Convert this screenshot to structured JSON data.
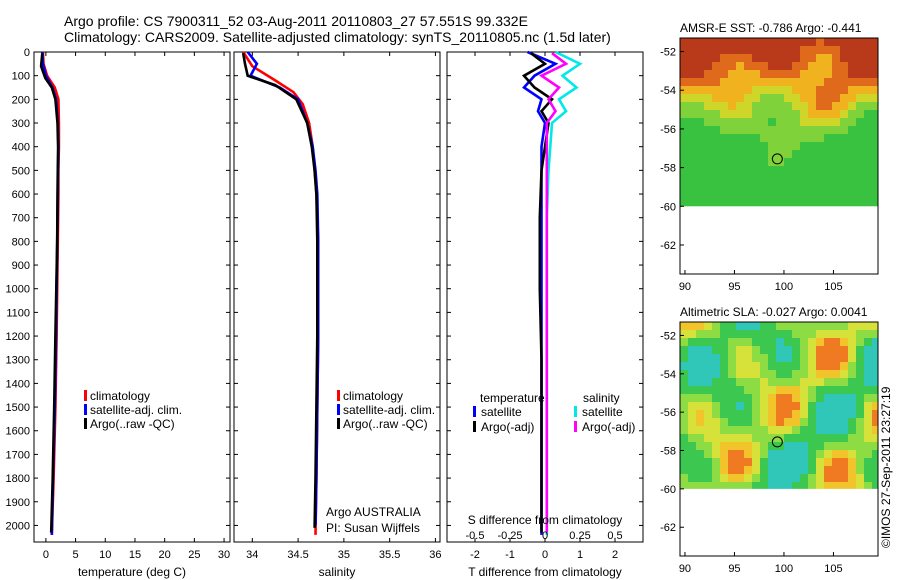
{
  "title": {
    "line1": "Argo profile: CS 7900311_52 03-Aug-2011 20110803_27 57.551S 99.332E",
    "line2": "Climatology: CARS2009. Satellite-adjusted climatology: synTS_20110805.nc (1.5d later)"
  },
  "credit": {
    "line1": "Argo AUSTRALIA",
    "line2": "PI: Susan Wijffels"
  },
  "timestamp": "©IMOS 27-Sep-2011 23:27:19",
  "colors": {
    "climatology": "#ff0000",
    "satellite": "#0000ff",
    "argo": "#000000",
    "satellite_salinity": "#00e8e8",
    "argo_salinity": "#ff00ff"
  },
  "chart_data": [
    {
      "id": "temperature",
      "type": "line",
      "xlabel": "temperature (deg C)",
      "ylabel": "",
      "xlim": [
        -2,
        31
      ],
      "ylim": [
        2070,
        0
      ],
      "xticks": [
        0,
        5,
        10,
        15,
        20,
        25,
        30
      ],
      "yticks": [
        0,
        100,
        200,
        300,
        400,
        500,
        600,
        700,
        800,
        900,
        1000,
        1100,
        1200,
        1300,
        1400,
        1500,
        1600,
        1700,
        1800,
        1900,
        2000
      ],
      "legend": [
        "climatology",
        "satellite-adj. clim.",
        "Argo(..raw -QC)"
      ],
      "series": [
        {
          "name": "climatology",
          "color": "#ff0000",
          "x": [
            -0.5,
            -0.4,
            0.2,
            1.5,
            2.1,
            2.2,
            2.2,
            2.1,
            2.1,
            2.0,
            1.9,
            1.8,
            1.6,
            1.3,
            1.0
          ],
          "y": [
            0,
            50,
            100,
            150,
            200,
            300,
            400,
            500,
            600,
            800,
            1000,
            1200,
            1500,
            1800,
            2040
          ]
        },
        {
          "name": "satellite-adj. clim.",
          "color": "#0000ff",
          "x": [
            -0.6,
            -0.5,
            0.0,
            1.1,
            1.7,
            2.0,
            2.1,
            2.05,
            2.0,
            1.9,
            1.8,
            1.7,
            1.5,
            1.2,
            1.0
          ],
          "y": [
            0,
            50,
            100,
            150,
            200,
            300,
            400,
            500,
            600,
            800,
            1000,
            1200,
            1500,
            1800,
            2040
          ]
        },
        {
          "name": "Argo(..raw -QC)",
          "color": "#000000",
          "x": [
            -0.6,
            -0.8,
            -0.1,
            1.0,
            1.6,
            1.95,
            2.05,
            2.0,
            1.95,
            1.9,
            1.75,
            1.6,
            1.4,
            1.15,
            0.9
          ],
          "y": [
            5,
            60,
            110,
            150,
            200,
            300,
            400,
            500,
            600,
            800,
            1000,
            1200,
            1500,
            1800,
            2030
          ]
        }
      ]
    },
    {
      "id": "salinity",
      "type": "line",
      "xlabel": "salinity",
      "ylabel": "",
      "xlim": [
        33.8,
        36.05
      ],
      "ylim": [
        2070,
        0
      ],
      "xticks": [
        34,
        34.5,
        35,
        35.5,
        36
      ],
      "legend": [
        "climatology",
        "satellite-adj. clim.",
        "Argo(..raw -QC)"
      ],
      "series": [
        {
          "name": "climatology",
          "color": "#ff0000",
          "x": [
            33.9,
            34.0,
            34.25,
            34.45,
            34.55,
            34.62,
            34.66,
            34.68,
            34.7,
            34.72,
            34.72,
            34.72,
            34.71,
            34.7,
            34.69
          ],
          "y": [
            0,
            60,
            120,
            170,
            220,
            300,
            400,
            500,
            600,
            800,
            1000,
            1200,
            1500,
            1800,
            2040
          ]
        },
        {
          "name": "satellite-adj. clim.",
          "color": "#0000ff",
          "x": [
            33.95,
            34.05,
            33.98,
            34.3,
            34.5,
            34.6,
            34.66,
            34.69,
            34.71,
            34.72,
            34.72,
            34.72,
            34.71,
            34.7,
            34.69
          ],
          "y": [
            0,
            50,
            100,
            150,
            200,
            300,
            400,
            500,
            600,
            800,
            1000,
            1200,
            1500,
            1800,
            2000
          ]
        },
        {
          "name": "Argo(..raw -QC)",
          "color": "#000000",
          "x": [
            33.9,
            33.92,
            33.95,
            34.25,
            34.48,
            34.6,
            34.65,
            34.68,
            34.7,
            34.71,
            34.71,
            34.71,
            34.7,
            34.69,
            34.68
          ],
          "y": [
            5,
            50,
            100,
            140,
            200,
            300,
            400,
            500,
            600,
            800,
            1000,
            1200,
            1500,
            1800,
            2010
          ]
        }
      ]
    },
    {
      "id": "difference",
      "type": "line",
      "xlabel": "T difference from climatology",
      "xlabel_top": "S difference from climatology",
      "xlim": [
        -2.8,
        2.8
      ],
      "ylim": [
        2070,
        0
      ],
      "xticks": [
        -2,
        -1,
        0,
        1,
        2
      ],
      "xticks_top": [
        -0.5,
        -0.25,
        0,
        0.25,
        0.5
      ],
      "legend_left_title": "temperature",
      "legend_right_title": "salinity",
      "legend_left": [
        "satellite",
        "Argo(-adj)"
      ],
      "legend_right": [
        "satellite",
        "Argo(-adj)"
      ],
      "series": [
        {
          "name": "temperature satellite",
          "color": "#0000ff",
          "x": [
            -0.5,
            0.3,
            -0.3,
            -0.6,
            -0.1,
            -0.2,
            0.0,
            -0.1,
            -0.1,
            -0.1,
            -0.1,
            -0.1,
            -0.1,
            -0.1,
            -0.1
          ],
          "y": [
            0,
            50,
            100,
            150,
            200,
            250,
            300,
            400,
            500,
            700,
            1000,
            1300,
            1600,
            1900,
            2040
          ]
        },
        {
          "name": "temperature Argo(-adj)",
          "color": "#000000",
          "x": [
            -0.4,
            0.0,
            -0.6,
            -0.3,
            0.2,
            -0.1,
            0.1,
            0.0,
            -0.1,
            -0.15,
            -0.15,
            -0.1,
            -0.1,
            -0.1,
            -0.1
          ],
          "y": [
            5,
            50,
            100,
            150,
            200,
            250,
            300,
            400,
            500,
            700,
            1000,
            1300,
            1600,
            1900,
            2030
          ]
        },
        {
          "name": "salinity satellite",
          "color": "#00e8e8",
          "x": [
            0.3,
            1.0,
            0.5,
            0.9,
            0.4,
            0.6,
            0.2,
            0.15,
            0.1,
            0.05,
            0.05,
            0.05,
            0.05,
            0.05,
            0.05
          ],
          "y": [
            0,
            50,
            100,
            150,
            200,
            250,
            300,
            400,
            500,
            700,
            1000,
            1300,
            1600,
            1900,
            2040
          ]
        },
        {
          "name": "salinity Argo(-adj)",
          "color": "#ff00ff",
          "x": [
            0.2,
            0.6,
            -0.1,
            0.4,
            0.1,
            0.3,
            0.05,
            0.05,
            0.05,
            0.05,
            0.05,
            0.05,
            0.05,
            0.05,
            0.05
          ],
          "y": [
            5,
            50,
            100,
            150,
            200,
            250,
            300,
            400,
            500,
            700,
            1000,
            1300,
            1600,
            1900,
            2030
          ]
        }
      ]
    },
    {
      "id": "sst_map",
      "type": "heatmap",
      "title": "AMSR-E SST: -0.786 Argo: -0.441",
      "xlim": [
        89.5,
        109.5
      ],
      "ylim": [
        -63.5,
        -51.3
      ],
      "xticks": [
        90,
        95,
        100,
        105
      ],
      "yticks": [
        -52,
        -54,
        -56,
        -58,
        -60,
        -62
      ],
      "data_lat_min": -60,
      "argo_lon": 99.332,
      "argo_lat": -57.551
    },
    {
      "id": "sla_map",
      "type": "heatmap",
      "title": "Altimetric SLA: -0.027 Argo: 0.0041",
      "xlim": [
        89.5,
        109.5
      ],
      "ylim": [
        -63.5,
        -51.3
      ],
      "xticks": [
        90,
        95,
        100,
        105
      ],
      "yticks": [
        -52,
        -54,
        -56,
        -58,
        -60,
        -62
      ],
      "data_lat_min": -60,
      "argo_lon": 99.332,
      "argo_lat": -57.551
    }
  ]
}
